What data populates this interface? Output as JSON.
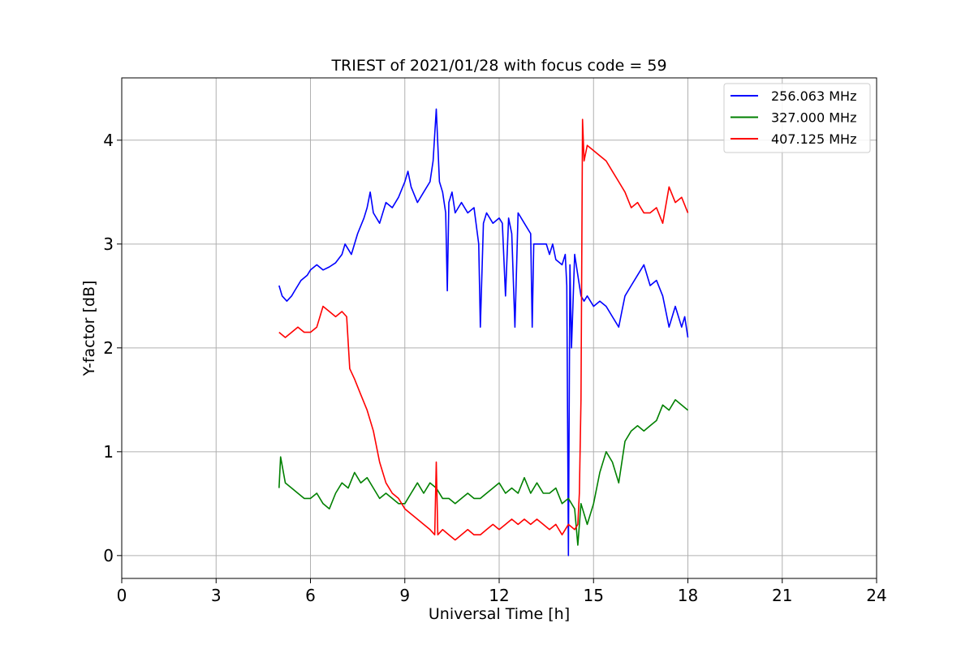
{
  "chart_data": {
    "type": "line",
    "title": "TRIEST of 2021/01/28 with focus code = 59",
    "xlabel": "Universal Time [h]",
    "ylabel": "Y-factor [dB]",
    "xlim": [
      0,
      24
    ],
    "ylim": [
      -0.22,
      4.6
    ],
    "xticks": [
      0,
      3,
      6,
      9,
      12,
      15,
      18,
      21,
      24
    ],
    "yticks": [
      0,
      1,
      2,
      3,
      4
    ],
    "grid": true,
    "legend_position": "top-right",
    "series": [
      {
        "name": "256.063 MHz",
        "color": "#0000ff",
        "x": [
          5.0,
          5.1,
          5.25,
          5.4,
          5.5,
          5.7,
          5.9,
          6.0,
          6.2,
          6.4,
          6.6,
          6.8,
          7.0,
          7.1,
          7.3,
          7.5,
          7.7,
          7.8,
          7.9,
          8.0,
          8.2,
          8.4,
          8.6,
          8.8,
          9.0,
          9.1,
          9.2,
          9.4,
          9.6,
          9.8,
          9.9,
          10.0,
          10.1,
          10.2,
          10.3,
          10.35,
          10.4,
          10.5,
          10.6,
          10.8,
          11.0,
          11.2,
          11.35,
          11.4,
          11.5,
          11.6,
          11.8,
          12.0,
          12.1,
          12.2,
          12.3,
          12.4,
          12.5,
          12.6,
          12.8,
          13.0,
          13.05,
          13.1,
          13.3,
          13.5,
          13.6,
          13.7,
          13.8,
          14.0,
          14.1,
          14.15,
          14.2,
          14.25,
          14.3,
          14.4,
          14.5,
          14.6,
          14.7,
          14.8,
          15.0,
          15.2,
          15.4,
          15.6,
          15.8,
          15.9,
          16.0,
          16.2,
          16.4,
          16.6,
          16.8,
          17.0,
          17.2,
          17.4,
          17.6,
          17.8,
          17.9,
          18.0
        ],
        "y": [
          2.6,
          2.5,
          2.45,
          2.5,
          2.55,
          2.65,
          2.7,
          2.75,
          2.8,
          2.75,
          2.78,
          2.82,
          2.9,
          3.0,
          2.9,
          3.1,
          3.25,
          3.35,
          3.5,
          3.3,
          3.2,
          3.4,
          3.35,
          3.45,
          3.6,
          3.7,
          3.55,
          3.4,
          3.5,
          3.6,
          3.8,
          4.3,
          3.6,
          3.5,
          3.3,
          2.55,
          3.4,
          3.5,
          3.3,
          3.4,
          3.3,
          3.35,
          3.0,
          2.2,
          3.2,
          3.3,
          3.2,
          3.25,
          3.2,
          2.5,
          3.25,
          3.1,
          2.2,
          3.3,
          3.2,
          3.1,
          2.2,
          3.0,
          3.0,
          3.0,
          2.9,
          3.0,
          2.85,
          2.8,
          2.9,
          2.6,
          0.0,
          2.8,
          2.0,
          2.9,
          2.7,
          2.5,
          2.45,
          2.5,
          2.4,
          2.45,
          2.4,
          2.3,
          2.2,
          2.35,
          2.5,
          2.6,
          2.7,
          2.8,
          2.6,
          2.65,
          2.5,
          2.2,
          2.4,
          2.2,
          2.3,
          2.1
        ]
      },
      {
        "name": "327.000 MHz",
        "color": "#008000",
        "x": [
          5.0,
          5.05,
          5.2,
          5.4,
          5.6,
          5.8,
          6.0,
          6.2,
          6.4,
          6.6,
          6.8,
          7.0,
          7.2,
          7.4,
          7.6,
          7.8,
          8.0,
          8.2,
          8.4,
          8.6,
          8.8,
          9.0,
          9.2,
          9.4,
          9.6,
          9.8,
          10.0,
          10.2,
          10.4,
          10.6,
          10.8,
          11.0,
          11.2,
          11.4,
          11.6,
          11.8,
          12.0,
          12.2,
          12.4,
          12.6,
          12.8,
          13.0,
          13.2,
          13.4,
          13.6,
          13.8,
          14.0,
          14.2,
          14.4,
          14.5,
          14.6,
          14.8,
          15.0,
          15.2,
          15.4,
          15.6,
          15.8,
          16.0,
          16.2,
          16.4,
          16.6,
          16.8,
          17.0,
          17.2,
          17.4,
          17.6,
          17.8,
          18.0
        ],
        "y": [
          0.65,
          0.95,
          0.7,
          0.65,
          0.6,
          0.55,
          0.55,
          0.6,
          0.5,
          0.45,
          0.6,
          0.7,
          0.65,
          0.8,
          0.7,
          0.75,
          0.65,
          0.55,
          0.6,
          0.55,
          0.5,
          0.5,
          0.6,
          0.7,
          0.6,
          0.7,
          0.65,
          0.55,
          0.55,
          0.5,
          0.55,
          0.6,
          0.55,
          0.55,
          0.6,
          0.65,
          0.7,
          0.6,
          0.65,
          0.6,
          0.75,
          0.6,
          0.7,
          0.6,
          0.6,
          0.65,
          0.5,
          0.55,
          0.45,
          0.1,
          0.5,
          0.3,
          0.5,
          0.8,
          1.0,
          0.9,
          0.7,
          1.1,
          1.2,
          1.25,
          1.2,
          1.25,
          1.3,
          1.45,
          1.4,
          1.5,
          1.45,
          1.4
        ]
      },
      {
        "name": "407.125 MHz",
        "color": "#ff0000",
        "x": [
          5.0,
          5.2,
          5.4,
          5.6,
          5.8,
          6.0,
          6.2,
          6.4,
          6.6,
          6.8,
          7.0,
          7.15,
          7.25,
          7.4,
          7.6,
          7.8,
          8.0,
          8.2,
          8.4,
          8.6,
          8.8,
          9.0,
          9.2,
          9.4,
          9.6,
          9.8,
          9.95,
          10.0,
          10.05,
          10.2,
          10.4,
          10.6,
          10.8,
          11.0,
          11.2,
          11.4,
          11.6,
          11.8,
          12.0,
          12.2,
          12.4,
          12.6,
          12.8,
          13.0,
          13.2,
          13.4,
          13.6,
          13.8,
          14.0,
          14.2,
          14.4,
          14.5,
          14.55,
          14.6,
          14.65,
          14.7,
          14.8,
          15.0,
          15.2,
          15.4,
          15.6,
          15.8,
          16.0,
          16.2,
          16.4,
          16.6,
          16.8,
          17.0,
          17.2,
          17.4,
          17.6,
          17.8,
          18.0
        ],
        "y": [
          2.15,
          2.1,
          2.15,
          2.2,
          2.15,
          2.15,
          2.2,
          2.4,
          2.35,
          2.3,
          2.35,
          2.3,
          1.8,
          1.7,
          1.55,
          1.4,
          1.2,
          0.9,
          0.7,
          0.6,
          0.55,
          0.45,
          0.4,
          0.35,
          0.3,
          0.25,
          0.2,
          0.9,
          0.2,
          0.25,
          0.2,
          0.15,
          0.2,
          0.25,
          0.2,
          0.2,
          0.25,
          0.3,
          0.25,
          0.3,
          0.35,
          0.3,
          0.35,
          0.3,
          0.35,
          0.3,
          0.25,
          0.3,
          0.2,
          0.3,
          0.25,
          0.3,
          0.6,
          1.5,
          4.2,
          3.8,
          3.95,
          3.9,
          3.85,
          3.8,
          3.7,
          3.6,
          3.5,
          3.35,
          3.4,
          3.3,
          3.3,
          3.35,
          3.2,
          3.55,
          3.4,
          3.45,
          3.3
        ]
      }
    ]
  }
}
